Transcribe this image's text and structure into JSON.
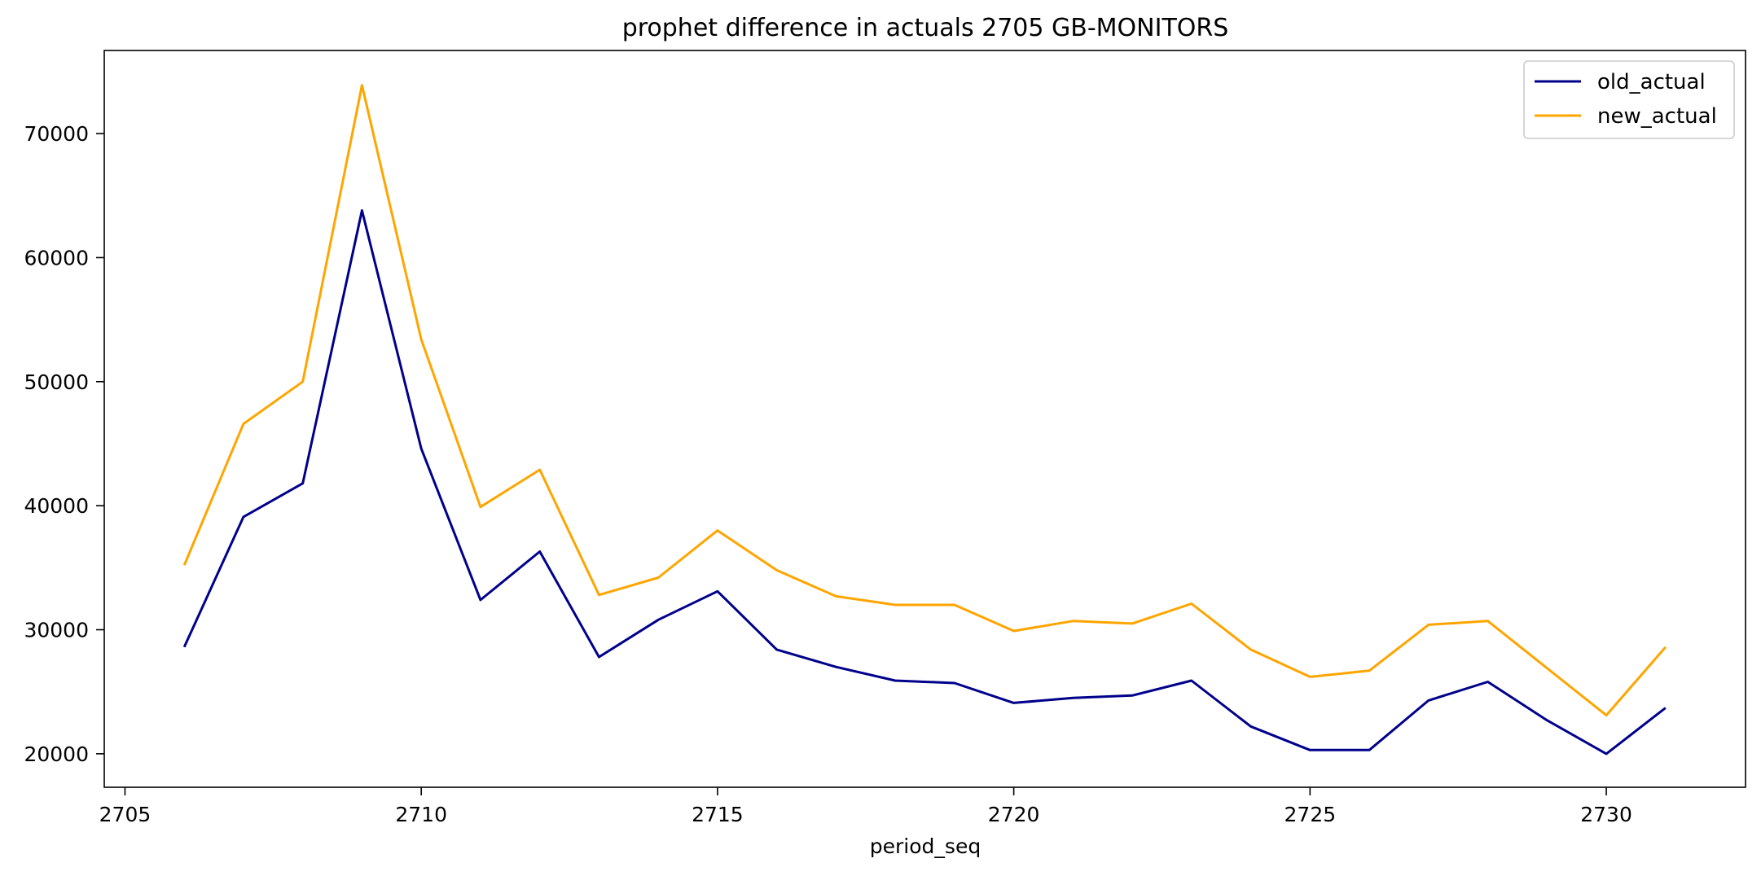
{
  "chart_data": {
    "type": "line",
    "title": "prophet difference in actuals 2705 GB-MONITORS",
    "xlabel": "period_seq",
    "ylabel": "",
    "xlim": [
      2704.65,
      2732.35
    ],
    "ylim": [
      17300,
      76700
    ],
    "x_ticks": [
      2705,
      2710,
      2715,
      2720,
      2725,
      2730
    ],
    "y_ticks": [
      20000,
      30000,
      40000,
      50000,
      60000,
      70000
    ],
    "grid": false,
    "legend_position": "top-right",
    "x": [
      2706,
      2707,
      2708,
      2709,
      2710,
      2711,
      2712,
      2713,
      2714,
      2715,
      2716,
      2717,
      2718,
      2719,
      2720,
      2721,
      2722,
      2723,
      2724,
      2725,
      2726,
      2727,
      2728,
      2729,
      2730,
      2731
    ],
    "series": [
      {
        "name": "old_actual",
        "color": "#00008b",
        "values": [
          28600,
          39100,
          41800,
          63800,
          44600,
          32400,
          36300,
          27800,
          30800,
          33100,
          28400,
          27000,
          25900,
          25700,
          24100,
          24500,
          24700,
          25900,
          22200,
          20300,
          20300,
          24300,
          25800,
          22700,
          20000,
          23700
        ]
      },
      {
        "name": "new_actual",
        "color": "#ffa500",
        "values": [
          35200,
          46600,
          50000,
          73900,
          53400,
          39900,
          42900,
          32800,
          34200,
          38000,
          34800,
          32700,
          32000,
          32000,
          29900,
          30700,
          30500,
          32100,
          28400,
          26200,
          26700,
          30400,
          30700,
          26900,
          23100,
          28600
        ]
      }
    ]
  }
}
